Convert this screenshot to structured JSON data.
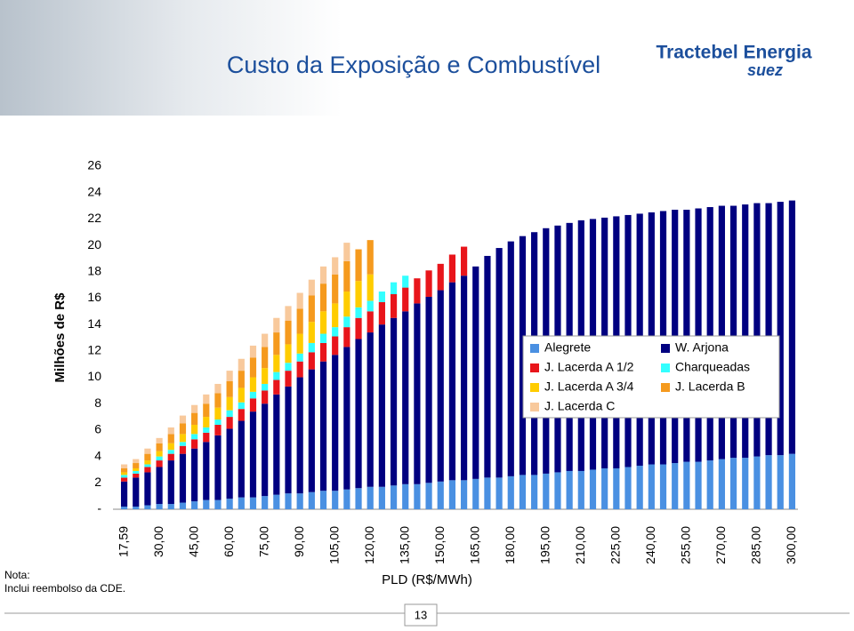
{
  "header": {
    "logo": "Tractebel Energia",
    "logo_sub": "suez"
  },
  "footer": {
    "note_title": "Nota:",
    "note": "Inclui reembolso da CDE.",
    "page": "13"
  },
  "chart_data": {
    "type": "stacked_bar",
    "title": "Custo da Exposição e Combustível",
    "x_label": "PLD (R$/MWh)",
    "y_label": "Milhões de R$",
    "categories": [
      "17,59",
      null,
      null,
      "30,00",
      null,
      null,
      "45,00",
      null,
      null,
      "60,00",
      null,
      null,
      "75,00",
      null,
      null,
      "90,00",
      null,
      null,
      "105,00",
      null,
      null,
      "120,00",
      null,
      null,
      "135,00",
      null,
      null,
      "150,00",
      null,
      null,
      "165,00",
      null,
      null,
      "180,00",
      null,
      null,
      "195,00",
      null,
      null,
      "210,00",
      null,
      null,
      "225,00",
      null,
      null,
      "240,00",
      null,
      null,
      "255,00",
      null,
      null,
      "270,00",
      null,
      null,
      "285,00",
      null,
      null,
      "300,00"
    ],
    "ylim": [
      0,
      26
    ],
    "yticks": [
      {
        "value": 0,
        "label": "-"
      },
      2,
      4,
      6,
      8,
      10,
      12,
      14,
      16,
      18,
      20,
      22,
      24,
      26
    ],
    "grid": false,
    "legend_position": "right",
    "series": [
      {
        "name": "Alegrete",
        "color": "#4a90e2",
        "values": [
          0.2,
          0.2,
          0.3,
          0.4,
          0.4,
          0.5,
          0.6,
          0.7,
          0.7,
          0.8,
          0.9,
          0.9,
          1.0,
          1.1,
          1.2,
          1.2,
          1.3,
          1.4,
          1.4,
          1.5,
          1.6,
          1.7,
          1.7,
          1.8,
          1.9,
          1.9,
          2.0,
          2.1,
          2.2,
          2.2,
          2.3,
          2.4,
          2.4,
          2.5,
          2.6,
          2.6,
          2.7,
          2.8,
          2.9,
          2.9,
          3.0,
          3.1,
          3.1,
          3.2,
          3.3,
          3.4,
          3.4,
          3.5,
          3.6,
          3.6,
          3.7,
          3.8,
          3.9,
          3.9,
          4.0,
          4.1,
          4.1,
          4.2
        ]
      },
      {
        "name": "W. Arjona",
        "color": "#000080",
        "values": [
          1.9,
          2.2,
          2.5,
          2.8,
          3.3,
          3.7,
          4.0,
          4.4,
          4.9,
          5.3,
          5.8,
          6.5,
          7.0,
          7.6,
          8.1,
          8.8,
          9.3,
          9.8,
          10.3,
          10.8,
          11.3,
          11.7,
          12.3,
          12.7,
          13.1,
          13.7,
          14.1,
          14.5,
          15.0,
          15.5,
          16.1,
          16.8,
          17.4,
          17.8,
          18.1,
          18.4,
          18.6,
          18.7,
          18.8,
          19.0,
          19.0,
          19.0,
          19.1,
          19.1,
          19.1,
          19.1,
          19.2,
          19.2,
          19.1,
          19.2,
          19.2,
          19.2,
          19.1,
          19.2,
          19.2,
          19.1,
          19.2,
          19.2
        ]
      },
      {
        "name": "J. Lacerda A 1/2",
        "color": "#e8151b",
        "values": [
          0.3,
          0.3,
          0.4,
          0.5,
          0.5,
          0.6,
          0.7,
          0.7,
          0.8,
          0.9,
          0.9,
          1.0,
          1.0,
          1.1,
          1.2,
          1.2,
          1.3,
          1.4,
          1.4,
          1.5,
          1.6,
          1.6,
          1.7,
          1.8,
          1.8,
          1.9,
          2.0,
          2.0,
          2.1,
          2.2,
          0,
          0,
          0,
          0,
          0,
          0,
          0,
          0,
          0,
          0,
          0,
          0,
          0,
          0,
          0,
          0,
          0,
          0,
          0,
          0,
          0,
          0,
          0,
          0,
          0,
          0,
          0,
          0
        ]
      },
      {
        "name": "Charqueadas",
        "color": "#33ffff",
        "values": [
          0.2,
          0.2,
          0.2,
          0.3,
          0.3,
          0.3,
          0.4,
          0.4,
          0.4,
          0.5,
          0.5,
          0.5,
          0.5,
          0.6,
          0.6,
          0.6,
          0.7,
          0.7,
          0.7,
          0.8,
          0.8,
          0.8,
          0.8,
          0.9,
          0.9,
          0,
          0,
          0,
          0,
          0,
          0,
          0,
          0,
          0,
          0,
          0,
          0,
          0,
          0,
          0,
          0,
          0,
          0,
          0,
          0,
          0,
          0,
          0,
          0,
          0,
          0,
          0,
          0,
          0,
          0,
          0,
          0,
          0
        ]
      },
      {
        "name": "J. Lacerda A 3/4",
        "color": "#ffcc00",
        "values": [
          0.2,
          0.2,
          0.3,
          0.4,
          0.5,
          0.6,
          0.7,
          0.8,
          0.9,
          1.0,
          1.1,
          1.1,
          1.2,
          1.3,
          1.4,
          1.5,
          1.6,
          1.7,
          1.8,
          1.9,
          2.0,
          2.0,
          0,
          0,
          0,
          0,
          0,
          0,
          0,
          0,
          0,
          0,
          0,
          0,
          0,
          0,
          0,
          0,
          0,
          0,
          0,
          0,
          0,
          0,
          0,
          0,
          0,
          0,
          0,
          0,
          0,
          0,
          0,
          0,
          0,
          0,
          0,
          0
        ]
      },
      {
        "name": "J. Lacerda B",
        "color": "#f59a1e",
        "values": [
          0.3,
          0.4,
          0.5,
          0.6,
          0.7,
          0.8,
          0.9,
          1.0,
          1.1,
          1.2,
          1.3,
          1.5,
          1.6,
          1.7,
          1.8,
          1.9,
          2.0,
          2.1,
          2.2,
          2.3,
          2.4,
          2.6,
          0,
          0,
          0,
          0,
          0,
          0,
          0,
          0,
          0,
          0,
          0,
          0,
          0,
          0,
          0,
          0,
          0,
          0,
          0,
          0,
          0,
          0,
          0,
          0,
          0,
          0,
          0,
          0,
          0,
          0,
          0,
          0,
          0,
          0,
          0,
          0
        ]
      },
      {
        "name": "J. Lacerda C",
        "color": "#f8c99c",
        "values": [
          0.3,
          0.3,
          0.4,
          0.4,
          0.5,
          0.6,
          0.6,
          0.7,
          0.7,
          0.8,
          0.9,
          0.9,
          1.0,
          1.1,
          1.1,
          1.2,
          1.2,
          1.3,
          1.3,
          1.4,
          0,
          0,
          0,
          0,
          0,
          0,
          0,
          0,
          0,
          0,
          0,
          0,
          0,
          0,
          0,
          0,
          0,
          0,
          0,
          0,
          0,
          0,
          0,
          0,
          0,
          0,
          0,
          0,
          0,
          0,
          0,
          0,
          0,
          0,
          0,
          0,
          0,
          0
        ]
      }
    ]
  }
}
